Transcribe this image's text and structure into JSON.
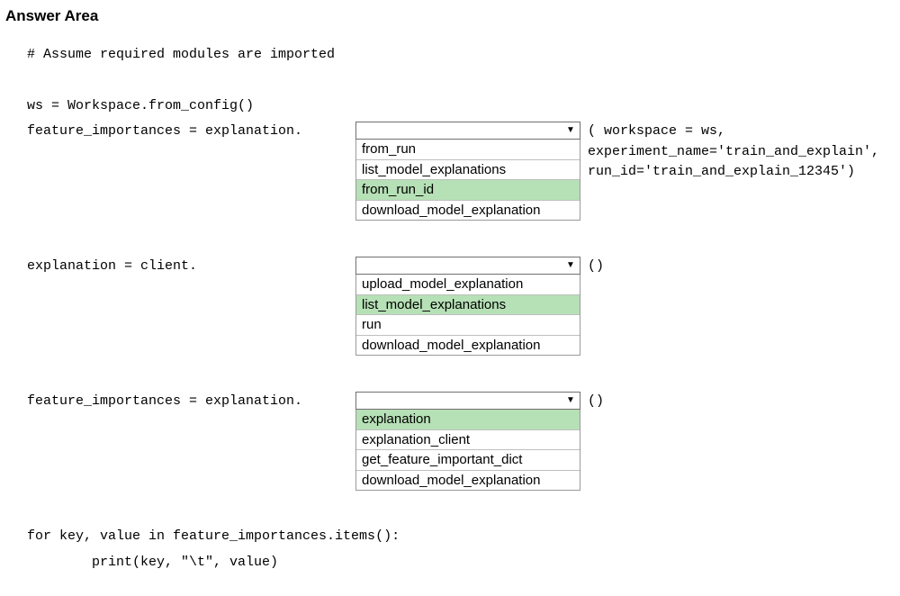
{
  "heading": "Answer Area",
  "code": {
    "comment": "# Assume required modules are imported",
    "ws_line": "ws = Workspace.from_config()",
    "stmt1_left": "feature_importances = explanation.",
    "stmt1_right_line1": "( workspace = ws,",
    "stmt1_right_line2": "experiment_name='train_and_explain',",
    "stmt1_right_line3": "run_id='train_and_explain_12345')",
    "stmt2_left": "explanation = client.",
    "stmt2_right": "()",
    "stmt3_left": "feature_importances = explanation.",
    "stmt3_right": "()",
    "for_line": "for key, value in feature_importances.items():",
    "print_line": "        print(key, \"\\t\", value)"
  },
  "dropdown1": {
    "options": [
      {
        "label": "from_run",
        "selected": false
      },
      {
        "label": "list_model_explanations",
        "selected": false
      },
      {
        "label": "from_run_id",
        "selected": true
      },
      {
        "label": "download_model_explanation",
        "selected": false
      }
    ]
  },
  "dropdown2": {
    "options": [
      {
        "label": "upload_model_explanation",
        "selected": false
      },
      {
        "label": "list_model_explanations",
        "selected": true
      },
      {
        "label": "run",
        "selected": false
      },
      {
        "label": "download_model_explanation",
        "selected": false
      }
    ]
  },
  "dropdown3": {
    "options": [
      {
        "label": "explanation",
        "selected": true
      },
      {
        "label": "explanation_client",
        "selected": false
      },
      {
        "label": "get_feature_important_dict",
        "selected": false
      },
      {
        "label": "download_model_explanation",
        "selected": false
      }
    ]
  },
  "colors": {
    "selected_bg": "#b6e0b6",
    "border": "#9a9a9a",
    "text": "#000000",
    "background": "#ffffff"
  }
}
